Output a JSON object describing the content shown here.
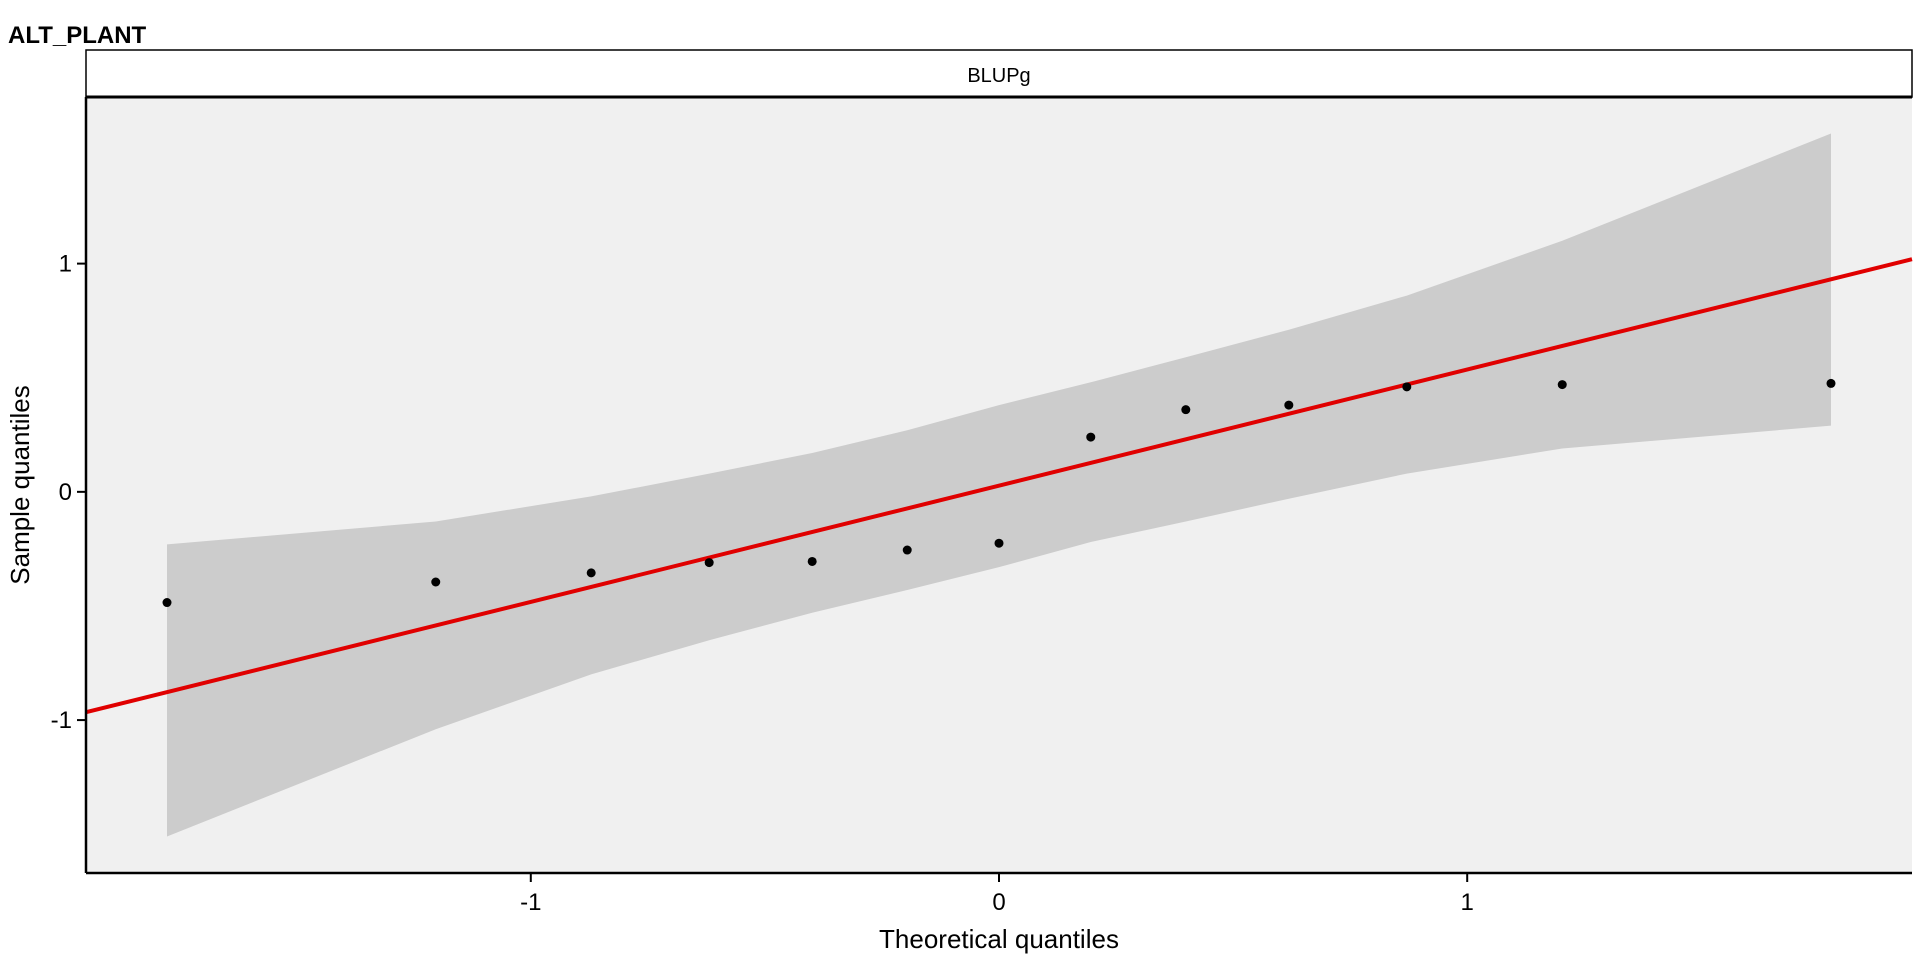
{
  "chart_data": {
    "type": "scatter",
    "title": "ALT_PLANT",
    "facet_label": "BLUPg",
    "xlabel": "Theoretical quantiles",
    "ylabel": "Sample quantiles",
    "xlim": [
      -1.95,
      1.95
    ],
    "ylim": [
      -1.67,
      1.73
    ],
    "xticks": [
      -1,
      0,
      1
    ],
    "yticks": [
      -1,
      0,
      1
    ],
    "xtick_labels": [
      "-1",
      "0",
      "1"
    ],
    "ytick_labels": [
      "-1",
      "0",
      "1"
    ],
    "grid": false,
    "legend": "none",
    "points": {
      "x": [
        -1.777,
        -1.203,
        -0.871,
        -0.619,
        -0.399,
        -0.196,
        0.0,
        0.196,
        0.399,
        0.619,
        0.871,
        1.203,
        1.777
      ],
      "y": [
        -0.485,
        -0.395,
        -0.355,
        -0.31,
        -0.305,
        -0.255,
        -0.225,
        0.24,
        0.36,
        0.38,
        0.46,
        0.47,
        0.475
      ]
    },
    "reference_line": {
      "slope": 0.509,
      "intercept": 0.027
    },
    "confidence_band": {
      "x": [
        -1.777,
        -1.203,
        -0.871,
        -0.619,
        -0.399,
        -0.196,
        0.0,
        0.196,
        0.399,
        0.619,
        0.871,
        1.203,
        1.777
      ],
      "upper": [
        -0.23,
        -0.13,
        -0.02,
        0.08,
        0.17,
        0.27,
        0.38,
        0.48,
        0.59,
        0.71,
        0.86,
        1.1,
        1.57
      ],
      "lower": [
        -1.51,
        -1.04,
        -0.8,
        -0.65,
        -0.53,
        -0.43,
        -0.33,
        -0.22,
        -0.13,
        -0.03,
        0.08,
        0.19,
        0.29
      ]
    },
    "colors": {
      "panel_background": "#f0f0f0",
      "band": "#cccccc",
      "line": "#e00000",
      "points": "#000000",
      "strip_background": "#ffffff"
    }
  }
}
